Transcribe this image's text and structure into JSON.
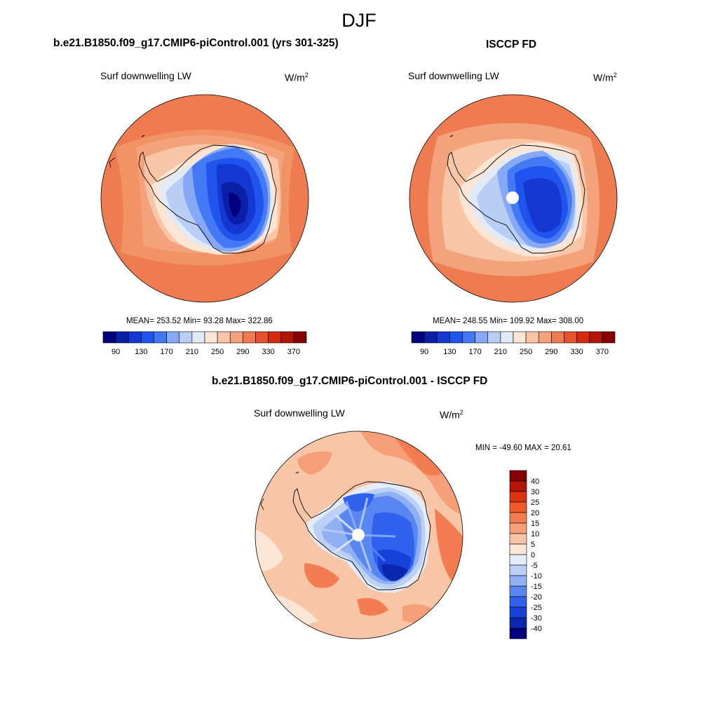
{
  "figure": {
    "title": "DJF"
  },
  "panels": [
    {
      "id": "model",
      "title": "b.e21.B1850.f09_g17.CMIP6-piControl.001 (yrs 301-325)",
      "variable": "Surf downwelling LW",
      "units_base": "W/m",
      "units_exp": "2",
      "stats": "MEAN= 253.52  Min=  93.28  Max= 322.86",
      "mean": 253.52,
      "min": 93.28,
      "max": 322.86
    },
    {
      "id": "obs",
      "title": "ISCCP FD",
      "variable": "Surf downwelling LW",
      "units_base": "W/m",
      "units_exp": "2",
      "stats": "MEAN= 248.55  Min= 109.92  Max= 308.00",
      "mean": 248.55,
      "min": 109.92,
      "max": 308.0
    },
    {
      "id": "diff",
      "title": "b.e21.B1850.f09_g17.CMIP6-piControl.001 - ISCCP FD",
      "variable": "Surf downwelling LW",
      "units_base": "W/m",
      "units_exp": "2",
      "stats": "MIN = -49.60 MAX =  20.61",
      "min": -49.6,
      "max": 20.61
    }
  ],
  "colorbars": {
    "absolute": {
      "tick_labels": [
        "90",
        "130",
        "170",
        "210",
        "250",
        "290",
        "330",
        "370"
      ],
      "colors": [
        "#00007f",
        "#0a1fa8",
        "#1638d2",
        "#1f55ee",
        "#4479f5",
        "#86a8f5",
        "#b8cef5",
        "#e1eaf7",
        "#fce5d4",
        "#f8c6a6",
        "#f4a27c",
        "#ef7c50",
        "#e8522b",
        "#d62a0e",
        "#b21504",
        "#860000"
      ]
    },
    "difference": {
      "tick_labels": [
        "40",
        "30",
        "25",
        "20",
        "15",
        "10",
        "5",
        "0",
        "-5",
        "-10",
        "-15",
        "-20",
        "-25",
        "-30",
        "-40"
      ],
      "colors": [
        "#860000",
        "#b21504",
        "#dc3410",
        "#f05a2a",
        "#f37c50",
        "#f59e78",
        "#f8c6a6",
        "#fbe5d4",
        "#e4ecf7",
        "#bcd0f5",
        "#8fb0f5",
        "#5a86f2",
        "#2f60ee",
        "#1742d8",
        "#0a27b0",
        "#00007f"
      ]
    }
  },
  "chart_data": [
    {
      "type": "heatmap",
      "map_projection": "south polar stereographic",
      "title": "b.e21.B1850.f09_g17.CMIP6-piControl.001 (yrs 301-325)",
      "variable": "Surf downwelling LW",
      "units": "W/m2",
      "mean": 253.52,
      "min": 93.28,
      "max": 322.86,
      "contour_levels": [
        90,
        130,
        170,
        210,
        250,
        290,
        330,
        370
      ]
    },
    {
      "type": "heatmap",
      "map_projection": "south polar stereographic",
      "title": "ISCCP FD",
      "variable": "Surf downwelling LW",
      "units": "W/m2",
      "mean": 248.55,
      "min": 109.92,
      "max": 308.0,
      "contour_levels": [
        90,
        130,
        170,
        210,
        250,
        290,
        330,
        370
      ]
    },
    {
      "type": "heatmap",
      "map_projection": "south polar stereographic",
      "title": "b.e21.B1850.f09_g17.CMIP6-piControl.001 - ISCCP FD",
      "variable": "Surf downwelling LW",
      "units": "W/m2",
      "min": -49.6,
      "max": 20.61,
      "contour_levels": [
        -40,
        -30,
        -25,
        -20,
        -15,
        -10,
        -5,
        0,
        5,
        10,
        15,
        20,
        25,
        30,
        40
      ]
    }
  ]
}
